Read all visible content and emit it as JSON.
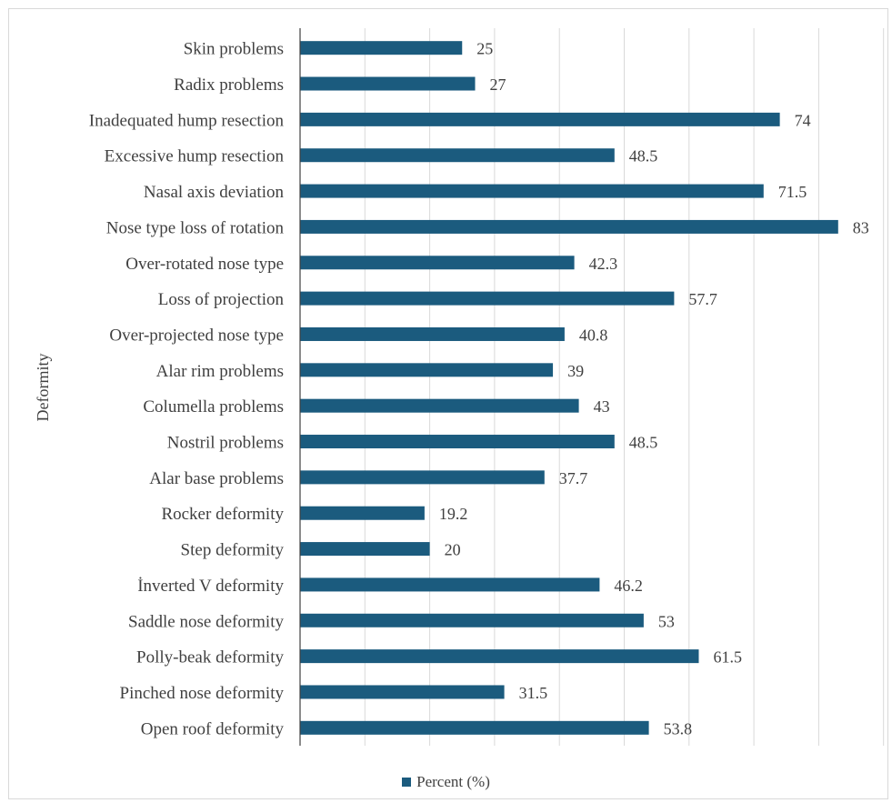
{
  "colors": {
    "bar": "#1b5b7e",
    "grid": "#d9d9d9",
    "axis": "#404040",
    "text": "#404040"
  },
  "legend": {
    "label": "Percent (%)"
  },
  "chart_data": {
    "type": "bar",
    "orientation": "horizontal",
    "title": "",
    "xlabel": "",
    "ylabel": "Deformity",
    "xlim": [
      0,
      90
    ],
    "grid": "vertical",
    "legend_position": "bottom",
    "categories": [
      "Skin problems",
      "Radix problems",
      "Inadequated  hump resection",
      "Excessive hump resection",
      "Nasal axis deviation",
      "Nose type loss of rotation",
      "Over-rotated nose type",
      "Loss of projection",
      "Over-projected nose type",
      "Alar rim problems",
      "Columella problems",
      "Nostril problems",
      "Alar base problems",
      "Rocker deformity",
      "Step deformity",
      "İnverted V deformity",
      "Saddle nose deformity",
      "Polly-beak deformity",
      "Pinched nose deformity",
      "Open roof deformity"
    ],
    "series": [
      {
        "name": "Percent (%)",
        "values": [
          25,
          27,
          74,
          48.5,
          71.5,
          83,
          42.3,
          57.7,
          40.8,
          39,
          43,
          48.5,
          37.7,
          19.2,
          20,
          46.2,
          53,
          61.5,
          31.5,
          53.8
        ],
        "labels": [
          "25",
          "27",
          "74",
          "48.5",
          "71.5",
          "83",
          "42.3",
          "57.7",
          "40.8",
          "39",
          "43",
          "48.5",
          "37.7",
          "19.2",
          "20",
          "46.2",
          "53",
          "61.5",
          "31.5",
          "53.8"
        ]
      }
    ]
  }
}
